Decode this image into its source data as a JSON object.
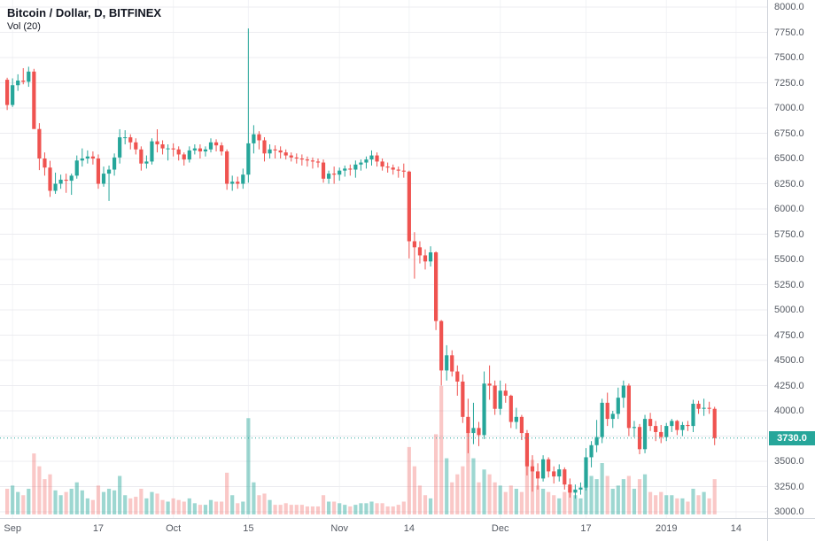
{
  "legend": {
    "symbol": "Bitcoin / Dollar, D, BITFINEX",
    "indicator": "Vol (20)"
  },
  "colors": {
    "up": "#26a69a",
    "down": "#ef5350",
    "vol_up": "rgba(38,166,154,0.45)",
    "vol_down": "rgba(239,83,80,0.32)",
    "grid": "#ececf0",
    "vgrid": "#f2f3f6",
    "axis_text": "#555a63",
    "last_price_line": "#26a69a",
    "badge_bg": "#26a69a",
    "badge_text": "#ffffff"
  },
  "price_axis": {
    "last_price_label": "3730.0"
  },
  "chart_data": {
    "type": "candlestick",
    "title": "Bitcoin / Dollar, D, BITFINEX",
    "indicator": "Vol (20)",
    "exchange": "BITFINEX",
    "interval": "D",
    "ylim": [
      3000,
      8000
    ],
    "y_tick_step": 250,
    "last_price": 3730.0,
    "x_ticks": [
      {
        "label": "Sep",
        "index": 1
      },
      {
        "label": "17",
        "index": 17
      },
      {
        "label": "Oct",
        "index": 31
      },
      {
        "label": "15",
        "index": 45
      },
      {
        "label": "Nov",
        "index": 62
      },
      {
        "label": "14",
        "index": 75
      },
      {
        "label": "Dec",
        "index": 92
      },
      {
        "label": "17",
        "index": 108
      },
      {
        "label": "2019",
        "index": 123
      },
      {
        "label": "14",
        "index": 136
      }
    ],
    "columns": [
      "date",
      "open",
      "high",
      "low",
      "close",
      "volume"
    ],
    "candles": [
      [
        "Aug 31",
        7280,
        7300,
        6980,
        7030,
        16
      ],
      [
        "Sep 1",
        7030,
        7294,
        7010,
        7226,
        18
      ],
      [
        "Sep 2",
        7226,
        7334,
        7170,
        7272,
        14
      ],
      [
        "Sep 3",
        7272,
        7395,
        7235,
        7260,
        12
      ],
      [
        "Sep 4",
        7260,
        7409,
        7210,
        7361,
        16
      ],
      [
        "Sep 5",
        7361,
        7388,
        6810,
        6792,
        38
      ],
      [
        "Sep 6",
        6792,
        6850,
        6385,
        6500,
        30
      ],
      [
        "Sep 7",
        6500,
        6560,
        6330,
        6410,
        22
      ],
      [
        "Sep 8",
        6410,
        6477,
        6120,
        6180,
        25
      ],
      [
        "Sep 9",
        6180,
        6360,
        6150,
        6250,
        15
      ],
      [
        "Sep 10",
        6250,
        6340,
        6200,
        6290,
        12
      ],
      [
        "Sep 11",
        6290,
        6350,
        6160,
        6280,
        14
      ],
      [
        "Sep 12",
        6280,
        6350,
        6140,
        6330,
        16
      ],
      [
        "Sep 13",
        6330,
        6530,
        6300,
        6480,
        20
      ],
      [
        "Sep 14",
        6480,
        6600,
        6420,
        6500,
        15
      ],
      [
        "Sep 15",
        6500,
        6580,
        6450,
        6520,
        10
      ],
      [
        "Sep 16",
        6520,
        6570,
        6440,
        6500,
        9
      ],
      [
        "Sep 17",
        6500,
        6540,
        6200,
        6250,
        18
      ],
      [
        "Sep 18",
        6250,
        6420,
        6220,
        6350,
        14
      ],
      [
        "Sep 19",
        6350,
        6430,
        6080,
        6390,
        16
      ],
      [
        "Sep 20",
        6390,
        6550,
        6330,
        6510,
        15
      ],
      [
        "Sep 21",
        6510,
        6790,
        6450,
        6710,
        24
      ],
      [
        "Sep 22",
        6710,
        6780,
        6640,
        6710,
        12
      ],
      [
        "Sep 23",
        6710,
        6740,
        6590,
        6660,
        10
      ],
      [
        "Sep 24",
        6660,
        6700,
        6540,
        6590,
        11
      ],
      [
        "Sep 25",
        6590,
        6620,
        6380,
        6450,
        16
      ],
      [
        "Sep 26",
        6450,
        6530,
        6400,
        6470,
        10
      ],
      [
        "Sep 27",
        6470,
        6700,
        6440,
        6670,
        14
      ],
      [
        "Sep 28",
        6670,
        6790,
        6560,
        6640,
        13
      ],
      [
        "Sep 29",
        6640,
        6680,
        6540,
        6600,
        9
      ],
      [
        "Sep 30",
        6600,
        6640,
        6480,
        6600,
        8
      ],
      [
        "Oct 1",
        6600,
        6650,
        6520,
        6590,
        10
      ],
      [
        "Oct 2",
        6590,
        6620,
        6480,
        6540,
        9
      ],
      [
        "Oct 3",
        6540,
        6560,
        6430,
        6490,
        8
      ],
      [
        "Oct 4",
        6490,
        6620,
        6460,
        6580,
        10
      ],
      [
        "Oct 5",
        6580,
        6640,
        6540,
        6600,
        7
      ],
      [
        "Oct 6",
        6600,
        6640,
        6500,
        6570,
        6
      ],
      [
        "Oct 7",
        6570,
        6620,
        6520,
        6590,
        6
      ],
      [
        "Oct 8",
        6590,
        6700,
        6560,
        6660,
        9
      ],
      [
        "Oct 9",
        6660,
        6690,
        6570,
        6630,
        8
      ],
      [
        "Oct 10",
        6630,
        6660,
        6530,
        6570,
        8
      ],
      [
        "Oct 11",
        6570,
        6590,
        6190,
        6250,
        26
      ],
      [
        "Oct 12",
        6250,
        6330,
        6180,
        6270,
        12
      ],
      [
        "Oct 13",
        6270,
        6320,
        6200,
        6250,
        7
      ],
      [
        "Oct 14",
        6250,
        6400,
        6200,
        6340,
        8
      ],
      [
        "Oct 15",
        6340,
        7788,
        6260,
        6650,
        60
      ],
      [
        "Oct 16",
        6650,
        6830,
        6550,
        6740,
        20
      ],
      [
        "Oct 17",
        6740,
        6770,
        6590,
        6680,
        12
      ],
      [
        "Oct 18",
        6680,
        6710,
        6470,
        6550,
        13
      ],
      [
        "Oct 19",
        6550,
        6640,
        6500,
        6590,
        9
      ],
      [
        "Oct 20",
        6590,
        6630,
        6500,
        6580,
        6
      ],
      [
        "Oct 21",
        6580,
        6620,
        6500,
        6560,
        6
      ],
      [
        "Oct 22",
        6560,
        6590,
        6490,
        6530,
        7
      ],
      [
        "Oct 23",
        6530,
        6560,
        6470,
        6510,
        6
      ],
      [
        "Oct 24",
        6510,
        6550,
        6450,
        6500,
        6
      ],
      [
        "Oct 25",
        6500,
        6540,
        6430,
        6490,
        6
      ],
      [
        "Oct 26",
        6490,
        6520,
        6420,
        6480,
        5
      ],
      [
        "Oct 27",
        6480,
        6510,
        6400,
        6470,
        5
      ],
      [
        "Oct 28",
        6470,
        6500,
        6410,
        6460,
        5
      ],
      [
        "Oct 29",
        6460,
        6490,
        6260,
        6300,
        12
      ],
      [
        "Oct 30",
        6300,
        6380,
        6250,
        6350,
        8
      ],
      [
        "Oct 31",
        6350,
        6420,
        6250,
        6340,
        8
      ],
      [
        "Nov 1",
        6340,
        6410,
        6280,
        6380,
        7
      ],
      [
        "Nov 2",
        6380,
        6430,
        6320,
        6400,
        6
      ],
      [
        "Nov 3",
        6400,
        6440,
        6330,
        6390,
        5
      ],
      [
        "Nov 4",
        6390,
        6480,
        6310,
        6440,
        6
      ],
      [
        "Nov 5",
        6440,
        6490,
        6380,
        6460,
        7
      ],
      [
        "Nov 6",
        6460,
        6520,
        6400,
        6490,
        7
      ],
      [
        "Nov 7",
        6490,
        6580,
        6430,
        6530,
        8
      ],
      [
        "Nov 8",
        6530,
        6560,
        6420,
        6470,
        7
      ],
      [
        "Nov 9",
        6470,
        6500,
        6380,
        6420,
        7
      ],
      [
        "Nov 10",
        6420,
        6460,
        6360,
        6410,
        5
      ],
      [
        "Nov 11",
        6410,
        6440,
        6340,
        6390,
        5
      ],
      [
        "Nov 12",
        6390,
        6420,
        6310,
        6380,
        6
      ],
      [
        "Nov 13",
        6380,
        6450,
        6310,
        6370,
        8
      ],
      [
        "Nov 14",
        6370,
        6380,
        5510,
        5680,
        42
      ],
      [
        "Nov 15",
        5680,
        5770,
        5310,
        5620,
        30
      ],
      [
        "Nov 16",
        5620,
        5680,
        5460,
        5540,
        18
      ],
      [
        "Nov 17",
        5540,
        5600,
        5400,
        5480,
        12
      ],
      [
        "Nov 18",
        5480,
        5630,
        5430,
        5570,
        10
      ],
      [
        "Nov 19",
        5570,
        5580,
        4800,
        4890,
        50
      ],
      [
        "Nov 20",
        4890,
        4900,
        4250,
        4400,
        80
      ],
      [
        "Nov 21",
        4400,
        4650,
        4300,
        4550,
        35
      ],
      [
        "Nov 22",
        4550,
        4600,
        4340,
        4390,
        20
      ],
      [
        "Nov 23",
        4390,
        4450,
        4150,
        4290,
        25
      ],
      [
        "Nov 24",
        4290,
        4360,
        3880,
        3940,
        30
      ],
      [
        "Nov 25",
        3940,
        4120,
        3580,
        3780,
        55
      ],
      [
        "Nov 26",
        3780,
        4080,
        3670,
        3830,
        35
      ],
      [
        "Nov 27",
        3830,
        3890,
        3650,
        3760,
        20
      ],
      [
        "Nov 28",
        3760,
        4390,
        3720,
        4270,
        28
      ],
      [
        "Nov 29",
        4270,
        4450,
        4110,
        4250,
        25
      ],
      [
        "Nov 30",
        4250,
        4300,
        3960,
        4020,
        20
      ],
      [
        "Dec 1",
        4020,
        4300,
        3960,
        4200,
        18
      ],
      [
        "Dec 2",
        4200,
        4270,
        4080,
        4150,
        14
      ],
      [
        "Dec 3",
        4150,
        4160,
        3830,
        3890,
        18
      ],
      [
        "Dec 4",
        3890,
        4030,
        3820,
        3940,
        16
      ],
      [
        "Dec 5",
        3940,
        3960,
        3710,
        3780,
        14
      ],
      [
        "Dec 6",
        3780,
        3810,
        3360,
        3450,
        30
      ],
      [
        "Dec 7",
        3450,
        3560,
        3200,
        3400,
        34
      ],
      [
        "Dec 8",
        3400,
        3480,
        3220,
        3330,
        18
      ],
      [
        "Dec 9",
        3330,
        3560,
        3300,
        3520,
        16
      ],
      [
        "Dec 10",
        3520,
        3540,
        3340,
        3400,
        14
      ],
      [
        "Dec 11",
        3400,
        3450,
        3280,
        3350,
        12
      ],
      [
        "Dec 12",
        3350,
        3470,
        3300,
        3420,
        10
      ],
      [
        "Dec 13",
        3420,
        3440,
        3220,
        3270,
        14
      ],
      [
        "Dec 14",
        3270,
        3330,
        3140,
        3190,
        16
      ],
      [
        "Dec 15",
        3190,
        3270,
        3130,
        3220,
        12
      ],
      [
        "Dec 16",
        3220,
        3290,
        3170,
        3240,
        10
      ],
      [
        "Dec 17",
        3240,
        3630,
        3210,
        3540,
        28
      ],
      [
        "Dec 18",
        3540,
        3700,
        3440,
        3660,
        24
      ],
      [
        "Dec 19",
        3660,
        3910,
        3590,
        3740,
        22
      ],
      [
        "Dec 20",
        3740,
        4120,
        3680,
        4080,
        32
      ],
      [
        "Dec 21",
        4080,
        4180,
        3850,
        3920,
        24
      ],
      [
        "Dec 22",
        3920,
        4000,
        3830,
        3970,
        16
      ],
      [
        "Dec 23",
        3970,
        4230,
        3920,
        4130,
        18
      ],
      [
        "Dec 24",
        4130,
        4300,
        4030,
        4250,
        22
      ],
      [
        "Dec 25",
        4250,
        4270,
        3750,
        3830,
        24
      ],
      [
        "Dec 26",
        3830,
        3900,
        3740,
        3840,
        16
      ],
      [
        "Dec 27",
        3840,
        3870,
        3570,
        3620,
        22
      ],
      [
        "Dec 28",
        3620,
        3960,
        3580,
        3920,
        25
      ],
      [
        "Dec 29",
        3920,
        3980,
        3800,
        3850,
        14
      ],
      [
        "Dec 30",
        3850,
        3900,
        3700,
        3790,
        12
      ],
      [
        "Dec 31",
        3790,
        3860,
        3680,
        3740,
        14
      ],
      [
        "Jan 1",
        3740,
        3880,
        3700,
        3850,
        12
      ],
      [
        "Jan 2",
        3850,
        3920,
        3790,
        3900,
        12
      ],
      [
        "Jan 3",
        3900,
        3910,
        3760,
        3810,
        10
      ],
      [
        "Jan 4",
        3810,
        3890,
        3750,
        3860,
        10
      ],
      [
        "Jan 5",
        3860,
        3900,
        3800,
        3850,
        8
      ],
      [
        "Jan 6",
        3850,
        4110,
        3790,
        4070,
        16
      ],
      [
        "Jan 7",
        4070,
        4100,
        3970,
        4020,
        12
      ],
      [
        "Jan 8",
        4020,
        4120,
        3950,
        4030,
        14
      ],
      [
        "Jan 9",
        4030,
        4090,
        3970,
        4020,
        10
      ],
      [
        "Jan 10",
        4020,
        4040,
        3660,
        3730,
        22
      ]
    ]
  }
}
